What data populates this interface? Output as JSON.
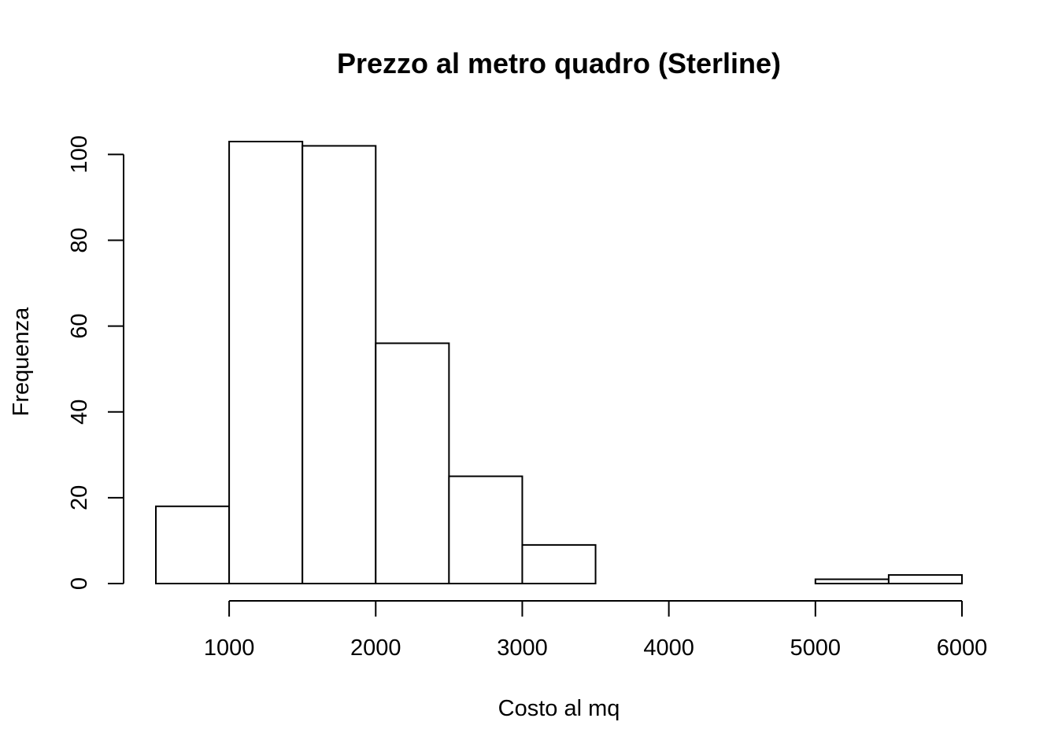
{
  "chart_data": {
    "type": "bar",
    "title": "Prezzo al metro quadro (Sterline)",
    "xlabel": "Costo al mq",
    "ylabel": "Frequenza",
    "histogram": true,
    "bins": [
      {
        "from": 500,
        "to": 1000,
        "count": 18
      },
      {
        "from": 1000,
        "to": 1500,
        "count": 103
      },
      {
        "from": 1500,
        "to": 2000,
        "count": 102
      },
      {
        "from": 2000,
        "to": 2500,
        "count": 56
      },
      {
        "from": 2500,
        "to": 3000,
        "count": 25
      },
      {
        "from": 3000,
        "to": 3500,
        "count": 9
      },
      {
        "from": 3500,
        "to": 4000,
        "count": 0
      },
      {
        "from": 4000,
        "to": 4500,
        "count": 0
      },
      {
        "from": 4500,
        "to": 5000,
        "count": 0
      },
      {
        "from": 5000,
        "to": 5500,
        "count": 1
      },
      {
        "from": 5500,
        "to": 6000,
        "count": 2
      }
    ],
    "xticks": [
      1000,
      2000,
      3000,
      4000,
      5000,
      6000
    ],
    "yticks": [
      0,
      20,
      40,
      60,
      80,
      100
    ],
    "xlim": [
      500,
      6000
    ],
    "ylim": [
      0,
      103
    ],
    "grid": false,
    "legend": "none",
    "bar_fill": "#ffffff",
    "bar_stroke": "#000000"
  }
}
